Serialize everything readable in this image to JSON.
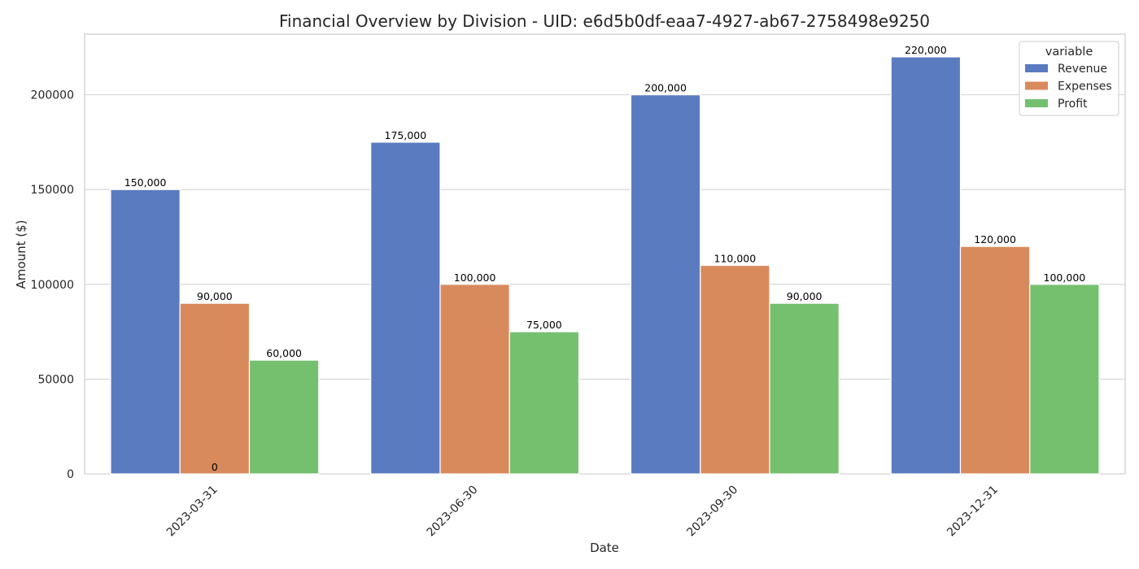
{
  "chart_data": {
    "type": "bar",
    "title": "Financial Overview by Division - UID: e6d5b0df-eaa7-4927-ab67-2758498e9250",
    "xlabel": "Date",
    "ylabel": "Amount ($)",
    "categories": [
      "2023-03-31",
      "2023-06-30",
      "2023-09-30",
      "2023-12-31"
    ],
    "series": [
      {
        "name": "Revenue",
        "color": "#5a7bc0",
        "values": [
          150000,
          175000,
          200000,
          220000
        ],
        "labels": [
          "150,000",
          "175,000",
          "200,000",
          "220,000"
        ]
      },
      {
        "name": "Expenses",
        "color": "#d98a5d",
        "values": [
          90000,
          100000,
          110000,
          120000
        ],
        "labels": [
          "90,000",
          "100,000",
          "110,000",
          "120,000"
        ]
      },
      {
        "name": "Profit",
        "color": "#75c06f",
        "values": [
          60000,
          75000,
          90000,
          100000
        ],
        "labels": [
          "60,000",
          "75,000",
          "90,000",
          "100,000"
        ]
      }
    ],
    "ylim": [
      0,
      232000
    ],
    "yticks": [
      0,
      50000,
      100000,
      150000,
      200000
    ],
    "ytick_labels": [
      "0",
      "50000",
      "100000",
      "150000",
      "200000"
    ],
    "extra_annotation": "0",
    "grid": true,
    "legend": {
      "title": "variable",
      "position": "top-right"
    }
  }
}
